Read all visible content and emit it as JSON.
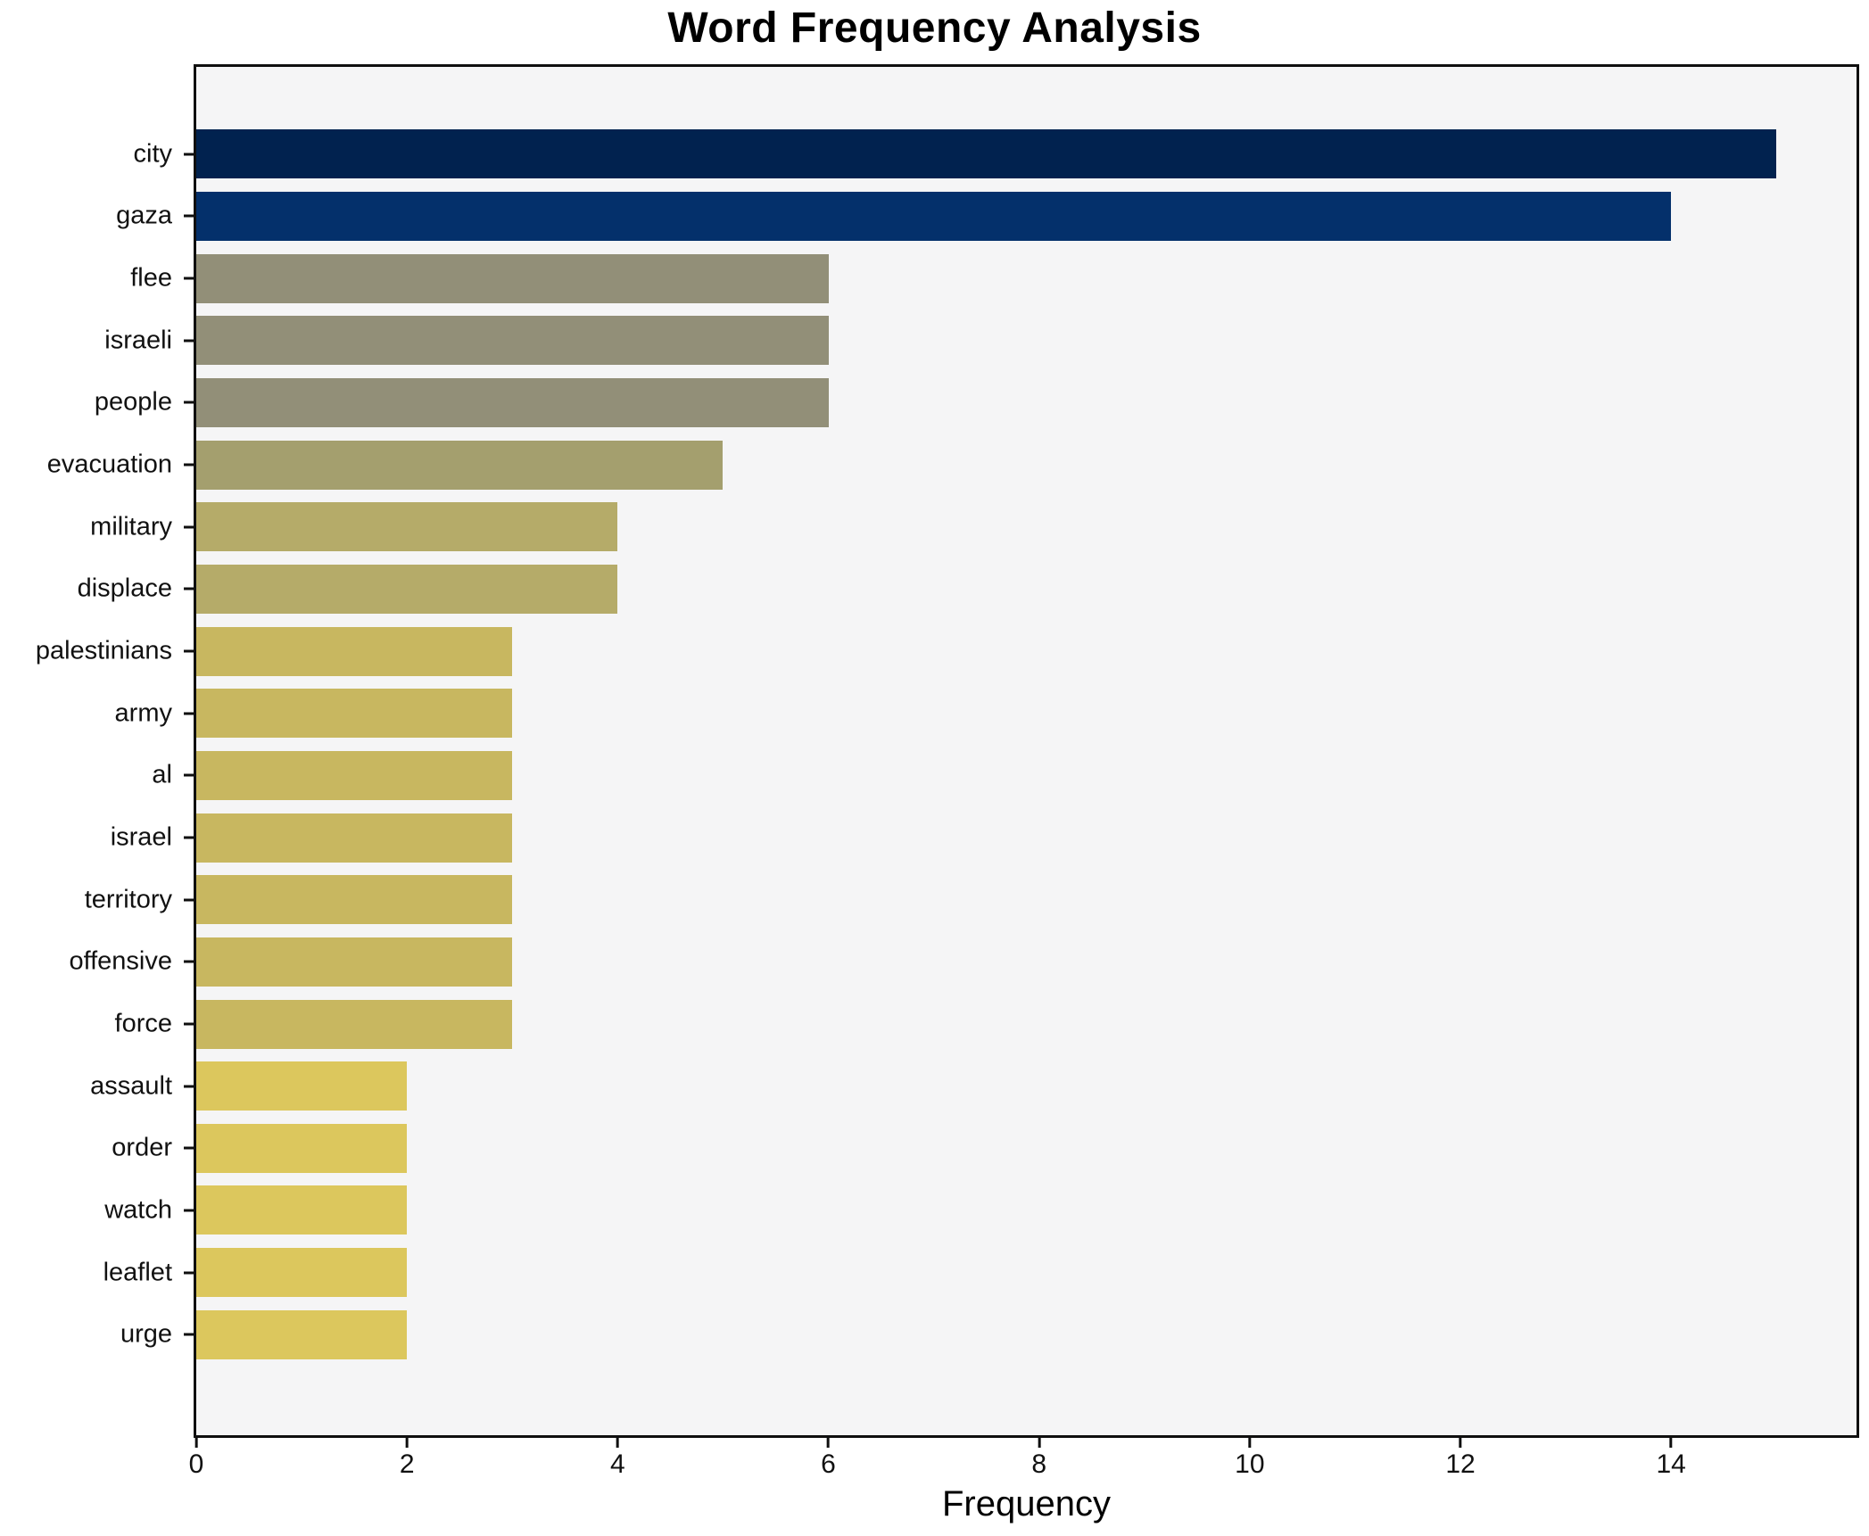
{
  "chart_data": {
    "type": "bar",
    "orientation": "horizontal",
    "title": "Word Frequency Analysis",
    "xlabel": "Frequency",
    "ylabel": "",
    "categories": [
      "city",
      "gaza",
      "flee",
      "israeli",
      "people",
      "evacuation",
      "military",
      "displace",
      "palestinians",
      "army",
      "al",
      "israel",
      "territory",
      "offensive",
      "force",
      "assault",
      "order",
      "watch",
      "leaflet",
      "urge"
    ],
    "values": [
      15,
      14,
      6,
      6,
      6,
      5,
      4,
      4,
      3,
      3,
      3,
      3,
      3,
      3,
      3,
      2,
      2,
      2,
      2,
      2
    ],
    "bar_colors": [
      "#01224f",
      "#04306b",
      "#928f78",
      "#928f78",
      "#928f78",
      "#a49f6e",
      "#b5ab69",
      "#b5ab69",
      "#c8b760",
      "#c8b760",
      "#c8b760",
      "#c8b760",
      "#c8b760",
      "#c8b760",
      "#c8b760",
      "#dcc75d",
      "#dcc75d",
      "#dcc75d",
      "#dcc75d",
      "#dcc75d"
    ],
    "xticks": [
      0,
      2,
      4,
      6,
      8,
      10,
      12,
      14
    ],
    "xlim": [
      0,
      15.76
    ],
    "grid": false,
    "legend": null,
    "plot_background_color": "#f5f5f6",
    "figure_background_color": "#ffffff",
    "spine_color": "#0f0f0f"
  }
}
